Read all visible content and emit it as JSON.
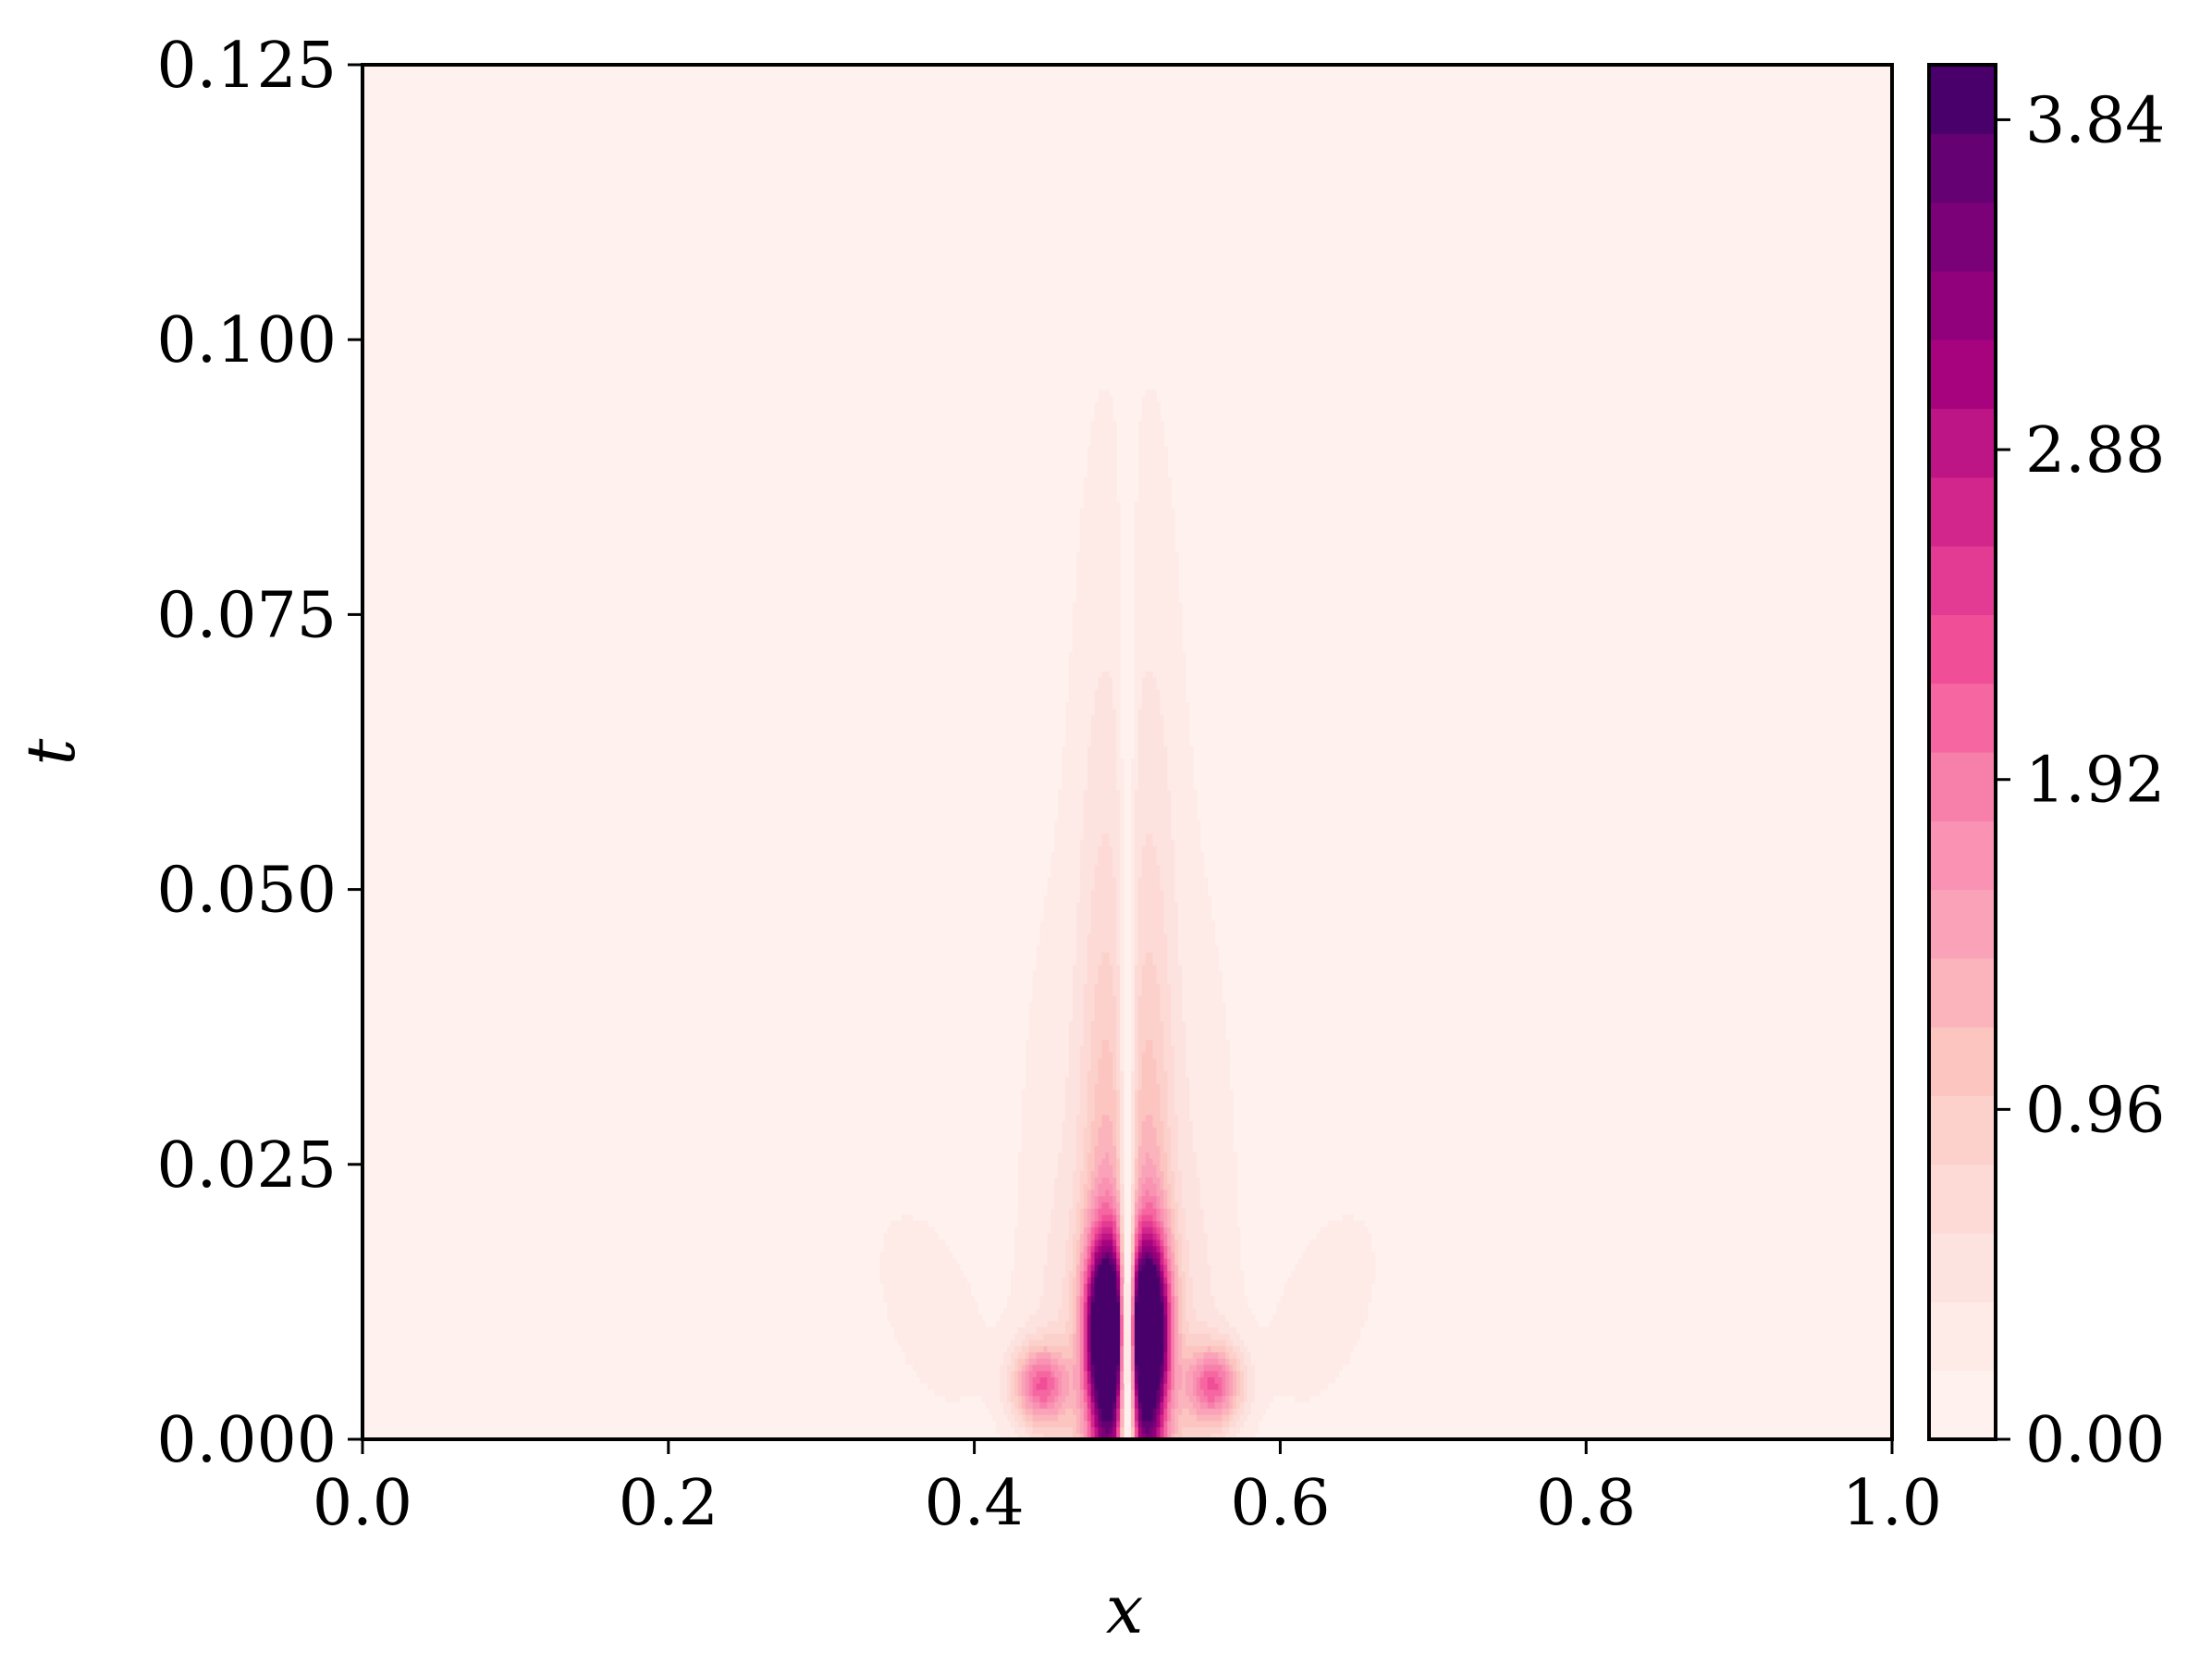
{
  "chart_data": {
    "type": "heatmap",
    "subtype": "filled-contour",
    "title": "",
    "xlabel": "x",
    "ylabel": "t",
    "xlim": [
      0.0,
      1.0
    ],
    "ylim": [
      0.0,
      0.125
    ],
    "x_ticks": [
      0.0,
      0.2,
      0.4,
      0.6,
      0.8,
      1.0
    ],
    "x_tick_labels": [
      "0.0",
      "0.2",
      "0.4",
      "0.6",
      "0.8",
      "1.0"
    ],
    "y_ticks": [
      0.0,
      0.025,
      0.05,
      0.075,
      0.1,
      0.125
    ],
    "y_tick_labels": [
      "0.000",
      "0.025",
      "0.050",
      "0.075",
      "0.100",
      "0.125"
    ],
    "grid": false,
    "legend": "none",
    "colorbar": {
      "min": 0.0,
      "max": 4.0,
      "ticks": [
        0.0,
        0.96,
        1.92,
        2.88,
        3.84
      ],
      "tick_labels": [
        "0.00",
        "0.96",
        "1.92",
        "2.88",
        "3.84"
      ],
      "levels": 20,
      "colormap": "RdPu",
      "colors": [
        "#fff2ee",
        "#feebe8",
        "#fde3df",
        "#fddad6",
        "#fcd1cb",
        "#fcc5c0",
        "#fbb4bc",
        "#faa3b8",
        "#f992b3",
        "#f780ab",
        "#f667a1",
        "#f04f98",
        "#e33a93",
        "#d3268c",
        "#be1586",
        "#a8037f",
        "#91017b",
        "#7a0177",
        "#650172",
        "#49006a"
      ]
    },
    "field_features": [
      {
        "label": "central twin ridges",
        "x": [
          0.48,
          0.52
        ],
        "t_peak": 0.01,
        "max_value": 3.9,
        "extent_t": 0.077
      },
      {
        "label": "side lobes",
        "x": [
          0.44,
          0.56
        ],
        "t_peak": 0.005,
        "max_value": 1.8
      },
      {
        "label": "outer wings",
        "x": [
          0.34,
          0.67
        ],
        "t_max": 0.029,
        "max_value": 0.3
      }
    ]
  }
}
